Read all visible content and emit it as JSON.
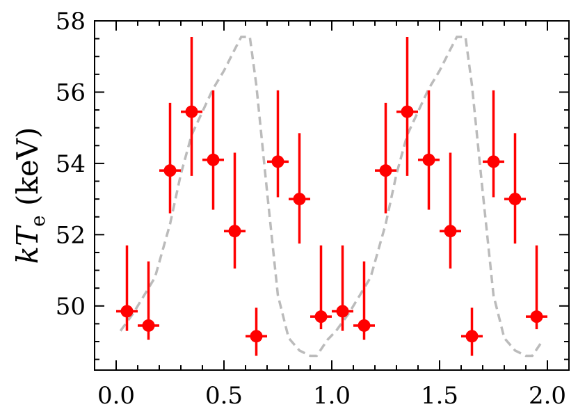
{
  "chart_data": {
    "type": "scatter",
    "title": "",
    "xlabel": "",
    "ylabel": {
      "italic_part": "kT",
      "subscript": "e",
      "unit": " (keV)"
    },
    "xlim": [
      -0.1,
      2.1
    ],
    "ylim": [
      48.2,
      58.0
    ],
    "xticks": [
      0.0,
      0.5,
      1.0,
      1.5,
      2.0
    ],
    "xtick_labels": [
      "0.0",
      "0.5",
      "1.0",
      "1.5",
      "2.0"
    ],
    "yticks": [
      50,
      52,
      54,
      56,
      58
    ],
    "ytick_labels": [
      "50",
      "52",
      "54",
      "56",
      "58"
    ],
    "grid": false,
    "marker_color": "#ff0000",
    "model_color": "#bbbbbb",
    "points": [
      {
        "x": 0.05,
        "y": 49.85,
        "ylo": 49.3,
        "yhi": 51.7,
        "xerr": 0.05
      },
      {
        "x": 0.15,
        "y": 49.45,
        "ylo": 49.05,
        "yhi": 51.25,
        "xerr": 0.05
      },
      {
        "x": 0.25,
        "y": 53.8,
        "ylo": 52.6,
        "yhi": 55.7,
        "xerr": 0.05
      },
      {
        "x": 0.35,
        "y": 55.45,
        "ylo": 53.65,
        "yhi": 57.55,
        "xerr": 0.05
      },
      {
        "x": 0.45,
        "y": 54.1,
        "ylo": 52.7,
        "yhi": 56.05,
        "xerr": 0.05
      },
      {
        "x": 0.55,
        "y": 52.1,
        "ylo": 51.05,
        "yhi": 54.3,
        "xerr": 0.05
      },
      {
        "x": 0.65,
        "y": 49.15,
        "ylo": 48.6,
        "yhi": 49.95,
        "xerr": 0.05
      },
      {
        "x": 0.75,
        "y": 54.05,
        "ylo": 53.05,
        "yhi": 56.05,
        "xerr": 0.05
      },
      {
        "x": 0.85,
        "y": 53.0,
        "ylo": 51.75,
        "yhi": 54.85,
        "xerr": 0.05
      },
      {
        "x": 0.95,
        "y": 49.7,
        "ylo": 49.35,
        "yhi": 51.7,
        "xerr": 0.05
      },
      {
        "x": 1.05,
        "y": 49.85,
        "ylo": 49.3,
        "yhi": 51.7,
        "xerr": 0.05
      },
      {
        "x": 1.15,
        "y": 49.45,
        "ylo": 49.05,
        "yhi": 51.25,
        "xerr": 0.05
      },
      {
        "x": 1.25,
        "y": 53.8,
        "ylo": 52.6,
        "yhi": 55.7,
        "xerr": 0.05
      },
      {
        "x": 1.35,
        "y": 55.45,
        "ylo": 53.65,
        "yhi": 57.55,
        "xerr": 0.05
      },
      {
        "x": 1.45,
        "y": 54.1,
        "ylo": 52.7,
        "yhi": 56.05,
        "xerr": 0.05
      },
      {
        "x": 1.55,
        "y": 52.1,
        "ylo": 51.05,
        "yhi": 54.3,
        "xerr": 0.05
      },
      {
        "x": 1.65,
        "y": 49.15,
        "ylo": 48.6,
        "yhi": 49.95,
        "xerr": 0.05
      },
      {
        "x": 1.75,
        "y": 54.05,
        "ylo": 53.05,
        "yhi": 56.05,
        "xerr": 0.05
      },
      {
        "x": 1.85,
        "y": 53.0,
        "ylo": 51.75,
        "yhi": 54.85,
        "xerr": 0.05
      },
      {
        "x": 1.95,
        "y": 49.7,
        "ylo": 49.35,
        "yhi": 51.7,
        "xerr": 0.05
      }
    ],
    "model_curve": {
      "style": "dashed",
      "x": [
        0.02,
        0.08,
        0.12,
        0.18,
        0.25,
        0.3,
        0.35,
        0.45,
        0.5,
        0.55,
        0.58,
        0.62,
        0.65,
        0.7,
        0.75,
        0.8,
        0.85,
        0.9,
        0.93,
        0.98,
        1.02,
        1.08,
        1.12,
        1.18,
        1.25,
        1.3,
        1.35,
        1.45,
        1.5,
        1.55,
        1.58,
        1.62,
        1.65,
        1.7,
        1.75,
        1.8,
        1.85,
        1.9,
        1.93,
        1.98
      ],
      "y": [
        49.3,
        49.8,
        50.2,
        50.8,
        52.3,
        53.7,
        54.8,
        56.1,
        56.6,
        57.2,
        57.55,
        57.55,
        56.2,
        53.2,
        50.3,
        49.1,
        48.75,
        48.6,
        48.6,
        49.05,
        49.3,
        49.8,
        50.2,
        50.8,
        52.3,
        53.7,
        54.8,
        56.1,
        56.6,
        57.2,
        57.55,
        57.55,
        56.2,
        53.2,
        50.3,
        49.1,
        48.75,
        48.6,
        48.6,
        49.05
      ]
    }
  }
}
